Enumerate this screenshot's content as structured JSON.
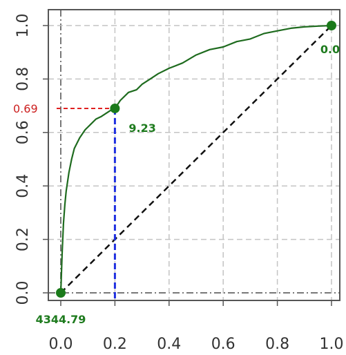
{
  "chart_data": {
    "type": "line",
    "title": "",
    "xlabel": "",
    "ylabel": "",
    "xlim": [
      0,
      1
    ],
    "ylim": [
      0,
      1
    ],
    "grid": true,
    "x_ticks": [
      "0.0",
      "0.2",
      "0.4",
      "0.6",
      "0.8",
      "1.0"
    ],
    "y_ticks": [
      "0.0",
      "0.2",
      "0.4",
      "0.6",
      "0.8",
      "1.0"
    ],
    "series": [
      {
        "color": "#1e6b1e",
        "x": [
          0,
          0.005,
          0.01,
          0.015,
          0.02,
          0.03,
          0.04,
          0.05,
          0.07,
          0.09,
          0.11,
          0.13,
          0.15,
          0.18,
          0.2,
          0.22,
          0.25,
          0.28,
          0.3,
          0.33,
          0.36,
          0.4,
          0.45,
          0.5,
          0.55,
          0.6,
          0.65,
          0.7,
          0.75,
          0.8,
          0.85,
          0.9,
          0.95,
          1.0
        ],
        "y": [
          0,
          0.15,
          0.26,
          0.33,
          0.38,
          0.45,
          0.5,
          0.54,
          0.58,
          0.61,
          0.63,
          0.65,
          0.66,
          0.68,
          0.69,
          0.72,
          0.75,
          0.76,
          0.78,
          0.8,
          0.82,
          0.84,
          0.86,
          0.89,
          0.91,
          0.92,
          0.94,
          0.95,
          0.97,
          0.98,
          0.99,
          0.995,
          0.998,
          1.0
        ]
      },
      {
        "color": "#111111",
        "style": "dashed",
        "x": [
          0,
          1
        ],
        "y": [
          0,
          1
        ]
      }
    ],
    "highlight_points": [
      {
        "x": 0,
        "y": 0,
        "label": "4344.79"
      },
      {
        "x": 0.2,
        "y": 0.69,
        "label": "9.23"
      },
      {
        "x": 1.0,
        "y": 1.0,
        "label": "0.0"
      }
    ],
    "reference_lines": {
      "x_value": 0.2,
      "y_value": 0.69,
      "y_label": "0.69",
      "x_color": "#1f2fe0",
      "y_color": "#e02020"
    }
  }
}
